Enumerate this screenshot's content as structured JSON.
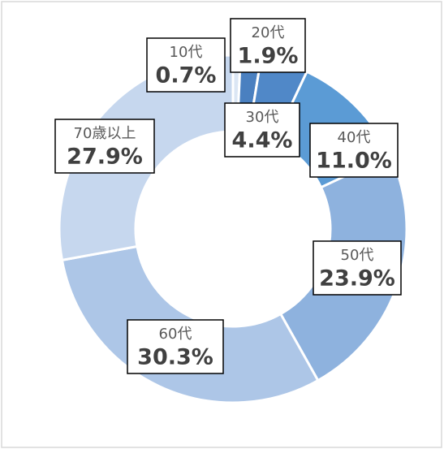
{
  "chart_data": {
    "type": "donut",
    "categories": [
      "10代",
      "20代",
      "30代",
      "40代",
      "50代",
      "60代",
      "70歳以上"
    ],
    "values": [
      0.7,
      1.9,
      4.4,
      11.0,
      23.9,
      30.3,
      27.9
    ],
    "value_labels": [
      "0.7%",
      "1.9%",
      "4.4%",
      "11.0%",
      "23.9%",
      "30.3%",
      "27.9%"
    ],
    "colors": [
      "#dbe6f4",
      "#4a80c0",
      "#5088c8",
      "#5b9bd5",
      "#8eb2de",
      "#adc6e7",
      "#c6d7ee"
    ]
  }
}
